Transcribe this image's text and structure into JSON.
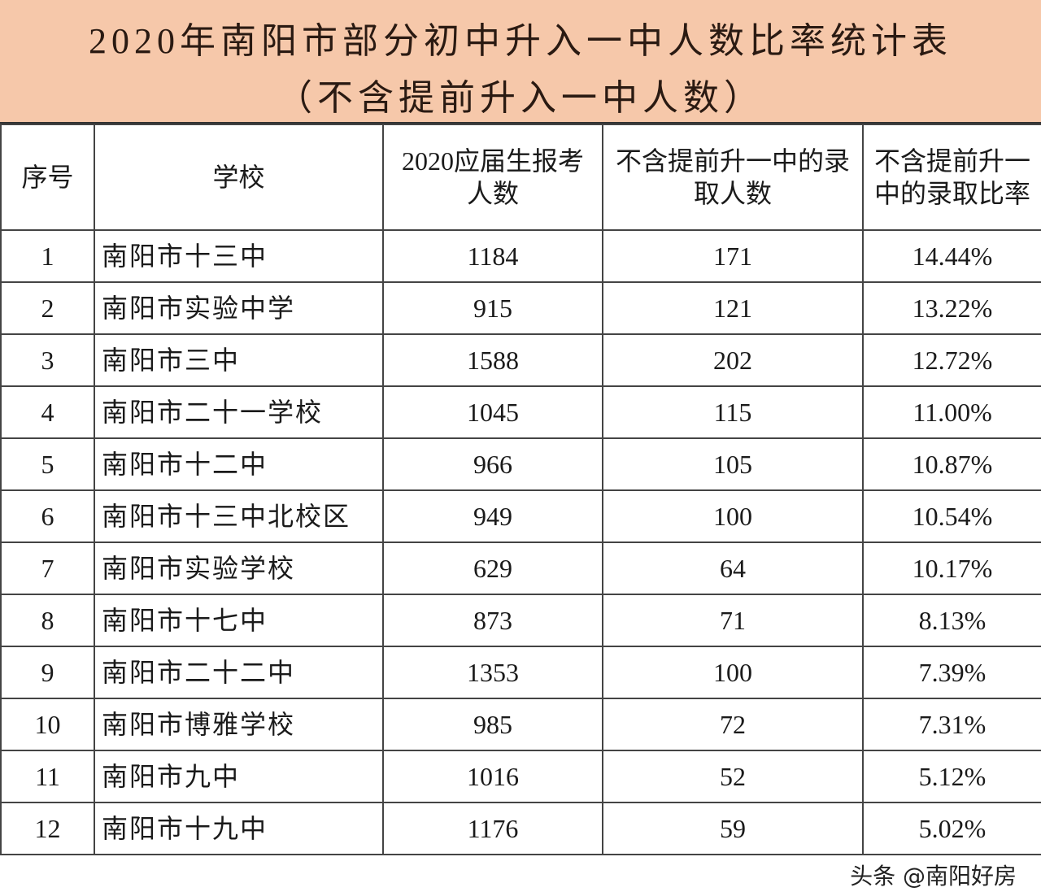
{
  "title": {
    "line1": "2020年南阳市部分初中升入一中人数比率统计表",
    "line2": "（不含提前升入一中人数）"
  },
  "colors": {
    "title_background": "#f6c8aa"
  },
  "table": {
    "headers": [
      "序号",
      "学校",
      "2020应届生报考人数",
      "不含提前升一中的录取人数",
      "不含提前升一中的录取比率"
    ],
    "rows": [
      [
        "1",
        "南阳市十三中",
        "1184",
        "171",
        "14.44%"
      ],
      [
        "2",
        "南阳市实验中学",
        "915",
        "121",
        "13.22%"
      ],
      [
        "3",
        "南阳市三中",
        "1588",
        "202",
        "12.72%"
      ],
      [
        "4",
        "南阳市二十一学校",
        "1045",
        "115",
        "11.00%"
      ],
      [
        "5",
        "南阳市十二中",
        "966",
        "105",
        "10.87%"
      ],
      [
        "6",
        "南阳市十三中北校区",
        "949",
        "100",
        "10.54%"
      ],
      [
        "7",
        "南阳市实验学校",
        "629",
        "64",
        "10.17%"
      ],
      [
        "8",
        "南阳市十七中",
        "873",
        "71",
        "8.13%"
      ],
      [
        "9",
        "南阳市二十二中",
        "1353",
        "100",
        "7.39%"
      ],
      [
        "10",
        "南阳市博雅学校",
        "985",
        "72",
        "7.31%"
      ],
      [
        "11",
        "南阳市九中",
        "1016",
        "52",
        "5.12%"
      ],
      [
        "12",
        "南阳市十九中",
        "1176",
        "59",
        "5.02%"
      ]
    ]
  },
  "watermark": "头条 @南阳好房"
}
